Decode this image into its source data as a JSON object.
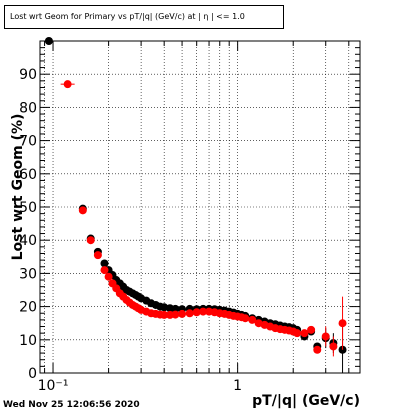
{
  "chart_data": {
    "type": "scatter",
    "title": "Lost wrt Geom for Primary vs pT/|q| (GeV/c) at | η | <= 1.0",
    "xlabel": "pT/|q| (GeV/c)",
    "ylabel": "Lost wrt Geom (%)",
    "x_scale": "log",
    "xlim": [
      0.085,
      4.6
    ],
    "ylim": [
      0,
      100
    ],
    "x_tick_labels": [
      "10⁻¹",
      "1"
    ],
    "y_tick_labels": [
      "0",
      "10",
      "20",
      "30",
      "40",
      "50",
      "60",
      "70",
      "80",
      "90"
    ],
    "grid": true,
    "series": [
      {
        "color": "#000000",
        "x": [
          0.095,
          0.145,
          0.16,
          0.175,
          0.19,
          0.2,
          0.21,
          0.22,
          0.23,
          0.24,
          0.25,
          0.26,
          0.27,
          0.28,
          0.29,
          0.3,
          0.32,
          0.34,
          0.36,
          0.38,
          0.4,
          0.43,
          0.46,
          0.5,
          0.55,
          0.6,
          0.65,
          0.7,
          0.75,
          0.8,
          0.85,
          0.9,
          0.95,
          1.0,
          1.05,
          1.1,
          1.2,
          1.3,
          1.4,
          1.5,
          1.6,
          1.7,
          1.8,
          1.9,
          2.0,
          2.1,
          2.3,
          2.5,
          2.7,
          3.0,
          3.3,
          3.7
        ],
        "y": [
          100,
          49.5,
          40.5,
          36.5,
          33,
          31,
          29.5,
          28,
          27,
          26,
          25,
          24.5,
          24,
          23.5,
          23,
          22.5,
          21.8,
          21,
          20.5,
          20,
          19.8,
          19.5,
          19.3,
          19.2,
          19.3,
          19.2,
          19.3,
          19.3,
          19.2,
          19,
          18.8,
          18.5,
          18.2,
          17.8,
          17.5,
          17.2,
          16.5,
          16,
          15.5,
          15,
          14.7,
          14.3,
          14,
          13.8,
          13.5,
          13,
          11,
          12.5,
          8,
          10.5,
          9,
          7
        ]
      },
      {
        "color": "#ff0000",
        "x": [
          0.12,
          0.145,
          0.16,
          0.175,
          0.19,
          0.2,
          0.21,
          0.22,
          0.23,
          0.24,
          0.25,
          0.26,
          0.27,
          0.28,
          0.29,
          0.3,
          0.32,
          0.34,
          0.36,
          0.38,
          0.4,
          0.43,
          0.46,
          0.5,
          0.55,
          0.6,
          0.65,
          0.7,
          0.75,
          0.8,
          0.85,
          0.9,
          0.95,
          1.0,
          1.05,
          1.1,
          1.2,
          1.3,
          1.4,
          1.5,
          1.6,
          1.7,
          1.8,
          1.9,
          2.0,
          2.1,
          2.3,
          2.5,
          2.7,
          3.0,
          3.3,
          3.7
        ],
        "y": [
          87,
          49,
          40,
          35.5,
          31,
          29,
          27,
          25.5,
          24,
          23,
          22,
          21.2,
          20.5,
          20,
          19.5,
          19,
          18.5,
          18,
          17.8,
          17.6,
          17.5,
          17.5,
          17.6,
          17.8,
          18,
          18.3,
          18.5,
          18.5,
          18.3,
          18,
          17.8,
          17.5,
          17.2,
          17,
          16.8,
          16.5,
          16,
          15,
          14.5,
          14,
          13.5,
          13.2,
          13,
          12.8,
          12.5,
          12,
          12,
          13,
          7,
          11,
          8,
          15
        ]
      }
    ]
  },
  "timestamp": "Wed Nov 25 12:06:56 2020"
}
